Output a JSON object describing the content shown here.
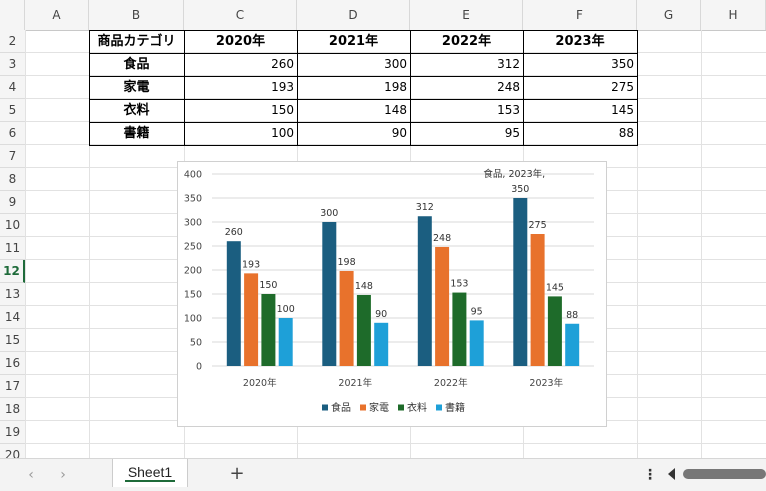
{
  "columns": [
    "A",
    "B",
    "C",
    "D",
    "E",
    "F",
    "G",
    "H"
  ],
  "rows": [
    "2",
    "3",
    "4",
    "5",
    "6",
    "7",
    "8",
    "9",
    "10",
    "11",
    "12",
    "13",
    "14",
    "15",
    "16",
    "17",
    "18",
    "19",
    "20"
  ],
  "selected_row": "12",
  "table": {
    "header": [
      "商品カテゴリ",
      "2020年",
      "2021年",
      "2022年",
      "2023年"
    ],
    "rows": [
      [
        "食品",
        "260",
        "300",
        "312",
        "350"
      ],
      [
        "家電",
        "193",
        "198",
        "248",
        "275"
      ],
      [
        "衣料",
        "150",
        "148",
        "153",
        "145"
      ],
      [
        "書籍",
        "100",
        "90",
        "95",
        "88"
      ]
    ]
  },
  "chart_data": {
    "type": "bar",
    "categories": [
      "2020年",
      "2021年",
      "2022年",
      "2023年"
    ],
    "series": [
      {
        "name": "食品",
        "values": [
          260,
          300,
          312,
          350
        ],
        "color": "#1b5e80"
      },
      {
        "name": "家電",
        "values": [
          193,
          198,
          248,
          275
        ],
        "color": "#e8722c"
      },
      {
        "name": "衣料",
        "values": [
          150,
          148,
          153,
          145
        ],
        "color": "#1e6b2a"
      },
      {
        "name": "書籍",
        "values": [
          100,
          90,
          95,
          88
        ],
        "color": "#1ea0d8"
      }
    ],
    "ylim": [
      0,
      400
    ],
    "yticks": [
      "0",
      "50",
      "100",
      "150",
      "200",
      "250",
      "300",
      "350",
      "400"
    ],
    "grid": true,
    "legend_position": "bottom",
    "annotation": "食品, 2023年,"
  },
  "sheet_tabs": [
    "Sheet1"
  ],
  "active_sheet": "Sheet1",
  "icons": {
    "prev": "chevron-left-icon",
    "next": "chevron-right-icon",
    "add": "plus-icon",
    "menu": "more-vertical-icon"
  }
}
